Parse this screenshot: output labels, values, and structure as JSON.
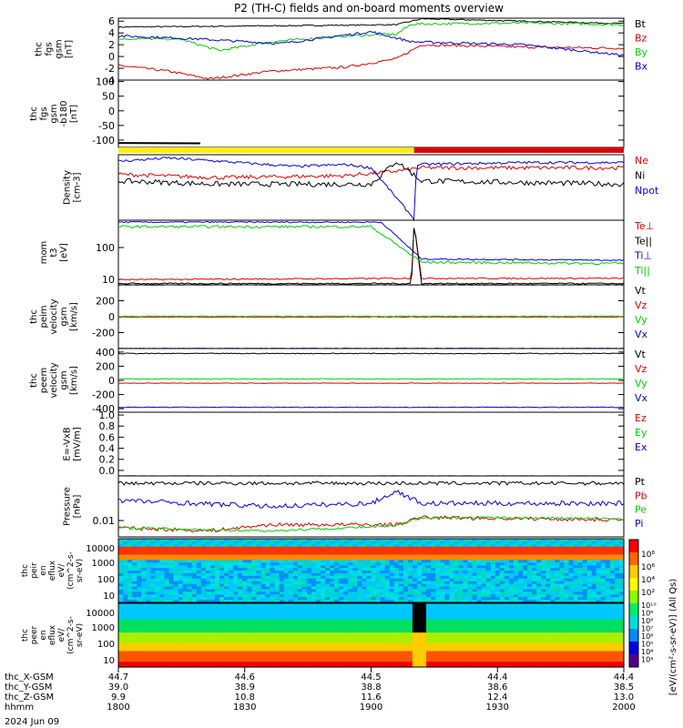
{
  "title": "P2 (TH-C) fields and on-board moments overview",
  "date": "2024 Jun 09",
  "colors": {
    "black": "#000000",
    "red": "#e00000",
    "green": "#00d000",
    "blue": "#0000e0",
    "yellow": "#ffee00"
  },
  "chart_data": {
    "type": "line",
    "x_range": [
      "18:00",
      "20:00"
    ],
    "panels": [
      {
        "id": "fgs",
        "ylabel": [
          "thc",
          "fgs",
          "gsm",
          "[nT]"
        ],
        "yticks": [
          "6",
          "4",
          "2",
          "0",
          "-2",
          "-4"
        ],
        "ylim": [
          -4,
          6.5
        ],
        "series": [
          {
            "name": "Bt",
            "color": "black",
            "knots": [
              [
                0,
                5
              ],
              [
                0.3,
                5.2
              ],
              [
                0.55,
                5.4
              ],
              [
                0.6,
                6.4
              ],
              [
                0.8,
                6
              ],
              [
                1,
                5.6
              ]
            ],
            "noise": 0.1
          },
          {
            "name": "Bz",
            "color": "red",
            "knots": [
              [
                0,
                -1.5
              ],
              [
                0.1,
                -2.5
              ],
              [
                0.18,
                -3.8
              ],
              [
                0.3,
                -2.5
              ],
              [
                0.45,
                -1.8
              ],
              [
                0.55,
                -0.4
              ],
              [
                0.6,
                2
              ],
              [
                0.8,
                1.6
              ],
              [
                1,
                1.4
              ]
            ],
            "noise": 0.2
          },
          {
            "name": "By",
            "color": "green",
            "knots": [
              [
                0,
                3
              ],
              [
                0.12,
                3
              ],
              [
                0.2,
                1
              ],
              [
                0.3,
                2.5
              ],
              [
                0.45,
                3.5
              ],
              [
                0.55,
                3.8
              ],
              [
                0.58,
                5.5
              ],
              [
                0.8,
                5.7
              ],
              [
                1,
                5.4
              ]
            ],
            "noise": 0.2
          },
          {
            "name": "Bx",
            "color": "blue",
            "knots": [
              [
                0,
                3.5
              ],
              [
                0.15,
                3
              ],
              [
                0.32,
                2.2
              ],
              [
                0.5,
                4.2
              ],
              [
                0.58,
                2.5
              ],
              [
                0.8,
                2
              ],
              [
                1,
                0.2
              ]
            ],
            "noise": 0.2
          }
        ]
      },
      {
        "id": "fgs-b180",
        "ylabel": [
          "thc",
          "fgs",
          "gsm",
          "-b180",
          "[nT]"
        ],
        "yticks": [
          "100",
          "50",
          "0",
          "-50",
          "-100"
        ],
        "ylim": [
          -125,
          105
        ],
        "series": []
      },
      {
        "id": "density",
        "ylabel": [
          "Density",
          "[cm-3]"
        ],
        "yticks": [],
        "ylim": [
          0,
          1
        ],
        "series": [
          {
            "name": "Ne",
            "color": "red",
            "knots": [
              [
                0,
                0.7
              ],
              [
                0.2,
                0.65
              ],
              [
                0.45,
                0.68
              ],
              [
                0.55,
                0.75
              ],
              [
                0.6,
                0.8
              ],
              [
                1,
                0.8
              ]
            ],
            "noise": 0.03
          },
          {
            "name": "Ni",
            "color": "black",
            "knots": [
              [
                0,
                0.6
              ],
              [
                0.2,
                0.55
              ],
              [
                0.5,
                0.55
              ],
              [
                0.55,
                0.9
              ],
              [
                0.6,
                0.6
              ],
              [
                1,
                0.55
              ]
            ],
            "noise": 0.04
          },
          {
            "name": "Npot",
            "color": "blue",
            "knots": [
              [
                0,
                0.9
              ],
              [
                0.1,
                0.95
              ],
              [
                0.2,
                0.9
              ],
              [
                0.35,
                0.82
              ],
              [
                0.45,
                0.85
              ],
              [
                0.5,
                0.8
              ],
              [
                0.585,
                0.02
              ],
              [
                0.59,
                0.85
              ],
              [
                0.8,
                0.88
              ],
              [
                1,
                0.88
              ]
            ],
            "noise": 0.02
          }
        ]
      },
      {
        "id": "moments-temp",
        "ylabel": [
          "mom",
          "t3",
          "[eV]"
        ],
        "yticks": [
          "100",
          "10"
        ],
        "ylim": [
          0,
          1
        ],
        "series": [
          {
            "name": "Te⊥",
            "color": "red",
            "knots": [
              [
                0,
                0.08
              ],
              [
                0.58,
                0.1
              ],
              [
                0.585,
                0.95
              ],
              [
                0.6,
                0.1
              ],
              [
                1,
                0.1
              ]
            ],
            "noise": 0.01
          },
          {
            "name": "Te||",
            "color": "black",
            "knots": [
              [
                0,
                0.02
              ],
              [
                0.58,
                0.02
              ],
              [
                0.585,
                0.95
              ],
              [
                0.6,
                0.02
              ],
              [
                1,
                0.02
              ]
            ],
            "noise": 0.01
          },
          {
            "name": "Ti⊥",
            "color": "blue",
            "knots": [
              [
                0,
                0.97
              ],
              [
                0.52,
                0.97
              ],
              [
                0.6,
                0.4
              ],
              [
                1,
                0.38
              ]
            ],
            "noise": 0.01
          },
          {
            "name": "Ti||",
            "color": "green",
            "knots": [
              [
                0,
                0.9
              ],
              [
                0.5,
                0.9
              ],
              [
                0.6,
                0.35
              ],
              [
                1,
                0.33
              ]
            ],
            "noise": 0.02
          }
        ]
      },
      {
        "id": "peim-vel",
        "ylabel": [
          "thc",
          "peim",
          "velocity",
          "gsm",
          "[km/s]"
        ],
        "yticks": [
          "200",
          "0",
          "-200"
        ],
        "ylim": [
          -400,
          400
        ],
        "series": [
          {
            "name": "Vt",
            "color": "black",
            "knots": [
              [
                0,
                400
              ],
              [
                1,
                400
              ]
            ],
            "noise": 4
          },
          {
            "name": "Vz",
            "color": "red",
            "knots": [
              [
                0,
                -5
              ],
              [
                1,
                -5
              ]
            ],
            "noise": 5
          },
          {
            "name": "Vy",
            "color": "green",
            "knots": [
              [
                0,
                5
              ],
              [
                1,
                5
              ]
            ],
            "noise": 5
          },
          {
            "name": "Vx",
            "color": "blue",
            "knots": [
              [
                0,
                -398
              ],
              [
                1,
                -398
              ]
            ],
            "noise": 3
          }
        ]
      },
      {
        "id": "peem-vel",
        "ylabel": [
          "thc",
          "peem",
          "velocity",
          "gsm",
          "[km/s]"
        ],
        "yticks": [
          "400",
          "200",
          "0",
          "-200",
          "-400"
        ],
        "ylim": [
          -450,
          450
        ],
        "series": [
          {
            "name": "Vt",
            "color": "black",
            "knots": [
              [
                0,
                380
              ],
              [
                1,
                380
              ]
            ],
            "noise": 6
          },
          {
            "name": "Vz",
            "color": "red",
            "knots": [
              [
                0,
                -40
              ],
              [
                1,
                -40
              ]
            ],
            "noise": 4
          },
          {
            "name": "Vy",
            "color": "green",
            "knots": [
              [
                0,
                20
              ],
              [
                1,
                20
              ]
            ],
            "noise": 5
          },
          {
            "name": "Vx",
            "color": "blue",
            "knots": [
              [
                0,
                -380
              ],
              [
                1,
                -380
              ]
            ],
            "noise": 5
          }
        ]
      },
      {
        "id": "efield",
        "ylabel": [
          "E=-VxB",
          "[mV/m]"
        ],
        "yticks": [
          "1.0",
          "0.8",
          "0.6",
          "0.4",
          "0.2",
          "0.0"
        ],
        "ylim": [
          -0.1,
          1.05
        ],
        "series": [
          {
            "name": "Ez",
            "color": "red",
            "knots": [
              [
                0,
                -0.1
              ],
              [
                1,
                -0.1
              ]
            ],
            "noise": 0.002
          },
          {
            "name": "Ey",
            "color": "green",
            "knots": [
              [
                0,
                -0.1
              ],
              [
                1,
                -0.1
              ]
            ],
            "noise": 0.002
          },
          {
            "name": "Ex",
            "color": "blue",
            "knots": [
              [
                0,
                -0.1
              ],
              [
                1,
                -0.1
              ]
            ],
            "noise": 0.002
          }
        ]
      },
      {
        "id": "pressure",
        "ylabel": [
          "Pressure",
          "[nPa]"
        ],
        "yticks": [
          "0.01"
        ],
        "ylim": [
          0,
          1
        ],
        "series": [
          {
            "name": "Pt",
            "color": "black",
            "knots": [
              [
                0,
                0.88
              ],
              [
                1,
                0.88
              ]
            ],
            "noise": 0.03
          },
          {
            "name": "Pb",
            "color": "red",
            "knots": [
              [
                0,
                0.15
              ],
              [
                0.18,
                0.1
              ],
              [
                0.3,
                0.2
              ],
              [
                0.55,
                0.2
              ],
              [
                0.6,
                0.32
              ],
              [
                1,
                0.28
              ]
            ],
            "noise": 0.03
          },
          {
            "name": "Pe",
            "color": "green",
            "knots": [
              [
                0,
                0.15
              ],
              [
                0.3,
                0.1
              ],
              [
                0.55,
                0.18
              ],
              [
                0.6,
                0.32
              ],
              [
                1,
                0.3
              ]
            ],
            "noise": 0.02
          },
          {
            "name": "Pi",
            "color": "blue",
            "knots": [
              [
                0,
                0.6
              ],
              [
                0.3,
                0.5
              ],
              [
                0.5,
                0.55
              ],
              [
                0.55,
                0.75
              ],
              [
                0.6,
                0.55
              ],
              [
                1,
                0.55
              ]
            ],
            "noise": 0.04
          }
        ]
      }
    ],
    "spectrograms": [
      {
        "id": "peir",
        "ylabel": [
          "thc",
          "peir",
          "en",
          "eflux",
          "eV/",
          "(cm^2-s-",
          "sr-eV)"
        ],
        "yticks": [
          "10000",
          "1000",
          "100",
          "10"
        ]
      },
      {
        "id": "peer",
        "ylabel": [
          "thc",
          "peer",
          "en",
          "eflux",
          "eV/",
          "(cm^2-s-",
          "sr-eV)"
        ],
        "yticks": [
          "10000",
          "1000",
          "100",
          "10"
        ]
      }
    ],
    "colorbar": {
      "label": "[eV/(cm²-s-sr-eV)] (All Qs)",
      "peir_ticks": [
        "10⁸",
        "10⁶",
        "10⁴",
        "10²"
      ],
      "peer_ticks": [
        "10¹⁰",
        "10⁹",
        "10⁸",
        "10⁷",
        "10⁶",
        "10⁵",
        "10⁴",
        "10³"
      ]
    },
    "mode_bar": {
      "segments": [
        {
          "from": 0,
          "to": 0.585,
          "color": "yellow"
        },
        {
          "from": 0.585,
          "to": 1,
          "color": "red"
        }
      ]
    },
    "x_axis": {
      "row_labels": [
        "thc_X-GSM",
        "thc_Y-GSM",
        "thc_Z-GSM",
        "hhmm"
      ],
      "ticks": [
        {
          "pos": 0,
          "values": [
            "44.7",
            "39.0",
            "9.9",
            "1800"
          ]
        },
        {
          "pos": 0.25,
          "values": [
            "44.6",
            "38.9",
            "10.8",
            "1830"
          ]
        },
        {
          "pos": 0.5,
          "values": [
            "44.5",
            "38.8",
            "11.6",
            "1900"
          ]
        },
        {
          "pos": 0.75,
          "values": [
            "44.4",
            "38.6",
            "12.4",
            "1930"
          ]
        },
        {
          "pos": 1,
          "values": [
            "44.4",
            "38.5",
            "13.0",
            "2000"
          ]
        }
      ]
    }
  }
}
